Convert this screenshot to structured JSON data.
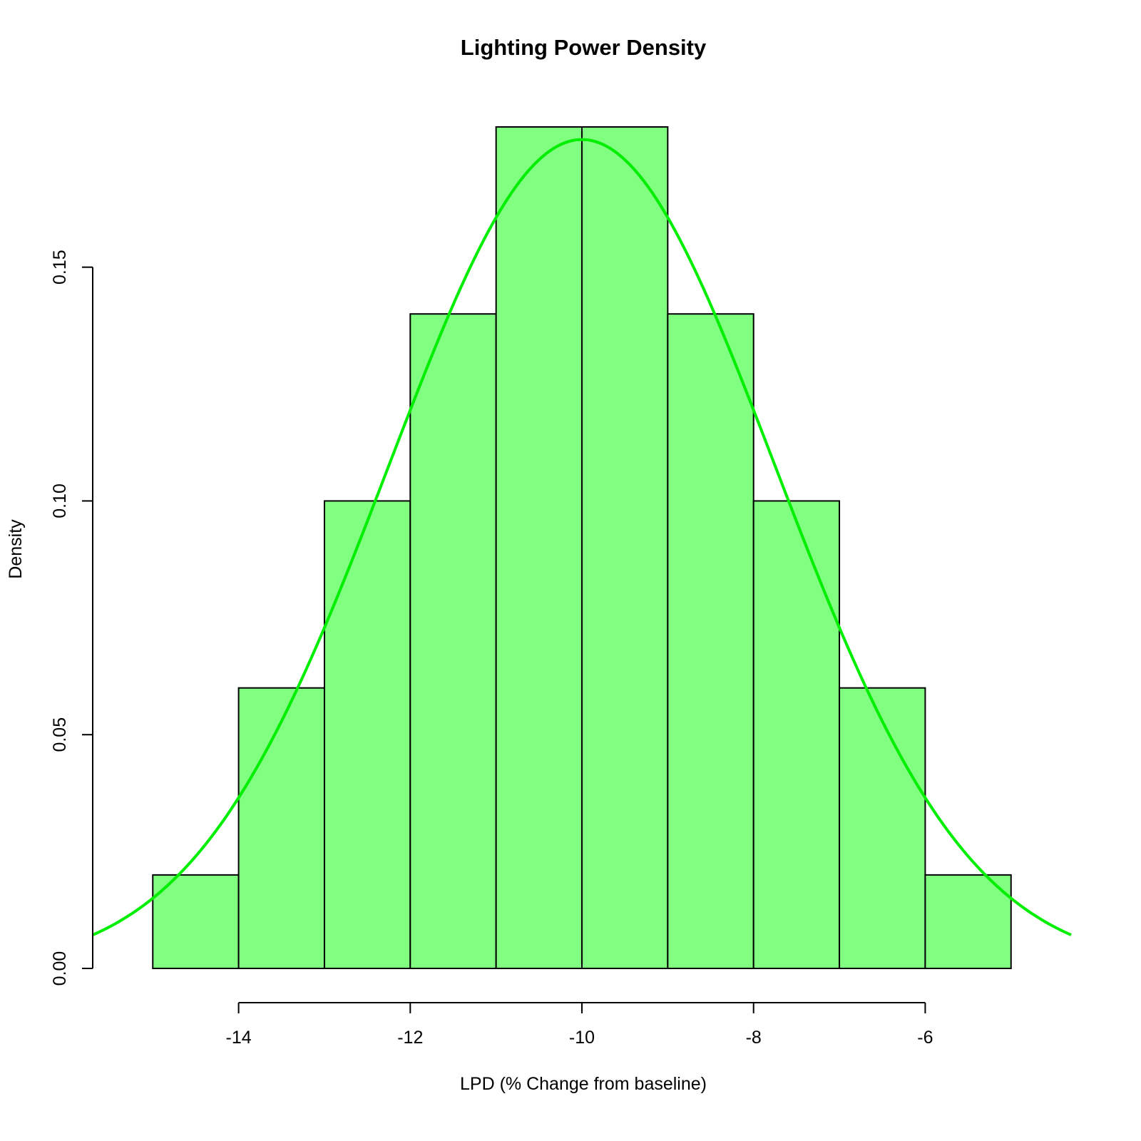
{
  "chart_data": {
    "type": "bar",
    "title": "Lighting Power Density",
    "xlabel": "LPD (% Change from baseline)",
    "ylabel": "Density",
    "bin_edges": [
      -15,
      -14,
      -13,
      -12,
      -11,
      -10,
      -9,
      -8,
      -7,
      -6,
      -5
    ],
    "values": [
      0.02,
      0.06,
      0.1,
      0.14,
      0.18,
      0.18,
      0.14,
      0.1,
      0.06,
      0.02
    ],
    "xlim": [
      -15.7,
      -4.3
    ],
    "ylim": [
      0,
      0.18
    ],
    "x_ticks": [
      -14,
      -12,
      -10,
      -8,
      -6
    ],
    "x_tick_labels": [
      "-14",
      "-12",
      "-10",
      "-8",
      "-6"
    ],
    "y_ticks": [
      0.0,
      0.05,
      0.1,
      0.15
    ],
    "y_tick_labels": [
      "0.00",
      "0.05",
      "0.10",
      "0.15"
    ],
    "density_curve": {
      "distribution": "normal",
      "mean": -10,
      "sd": 2.25
    },
    "grid": false,
    "colors": {
      "bar_fill": "#80ff80",
      "curve": "#00ee00",
      "outline": "#000000"
    }
  }
}
